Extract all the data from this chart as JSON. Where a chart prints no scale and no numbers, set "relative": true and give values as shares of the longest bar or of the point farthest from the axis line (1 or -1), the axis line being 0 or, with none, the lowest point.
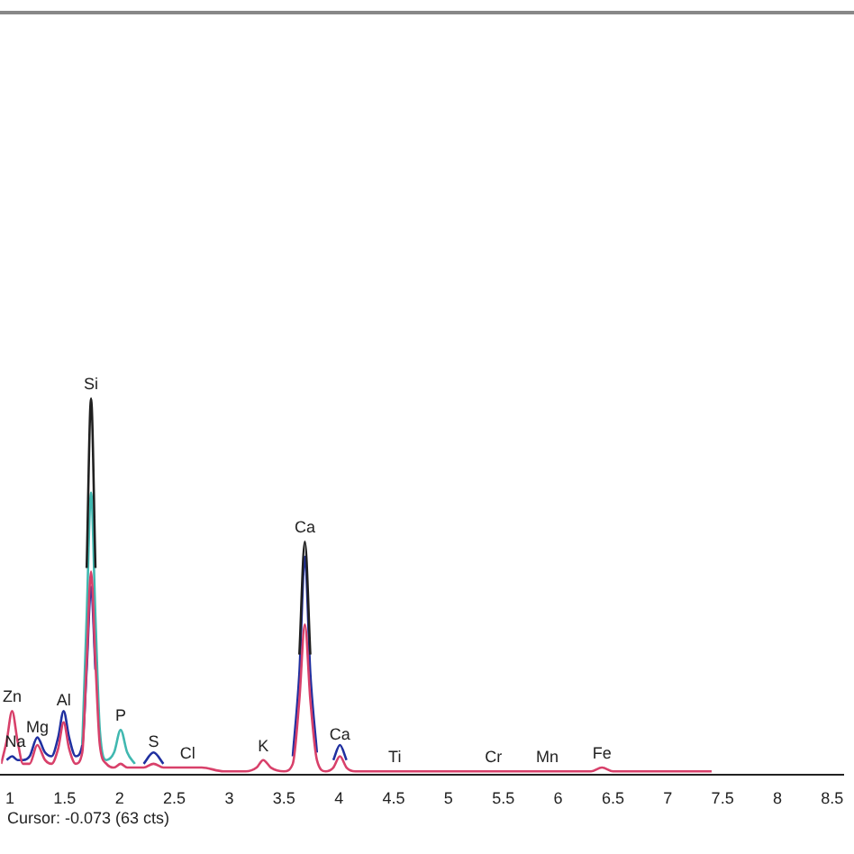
{
  "chart_data": {
    "type": "line",
    "relative": true,
    "grid": false,
    "legend": false,
    "marker": "none",
    "line_style": "solid",
    "xlim": [
      0.92,
      8.6
    ],
    "xticks": [
      1,
      1.5,
      2,
      2.5,
      3,
      3.5,
      4,
      4.5,
      5,
      5.5,
      6,
      6.5,
      7,
      7.5,
      8,
      8.5
    ],
    "x": [
      0.92,
      0.97,
      1.02,
      1.07,
      1.12,
      1.18,
      1.25,
      1.32,
      1.38,
      1.44,
      1.49,
      1.54,
      1.6,
      1.66,
      1.7,
      1.74,
      1.78,
      1.82,
      1.88,
      1.95,
      2.01,
      2.07,
      2.14,
      2.22,
      2.31,
      2.4,
      2.5,
      2.62,
      2.75,
      2.95,
      3.15,
      3.25,
      3.31,
      3.38,
      3.5,
      3.58,
      3.64,
      3.69,
      3.74,
      3.8,
      3.88,
      3.95,
      4.01,
      4.07,
      4.15,
      4.3,
      4.51,
      4.8,
      5.1,
      5.3,
      5.41,
      5.5,
      5.7,
      5.9,
      6.1,
      6.3,
      6.4,
      6.5,
      6.8,
      7.1,
      7.4
    ],
    "series": [
      {
        "color": "#d8406a",
        "values": [
          0.03,
          0.09,
          0.17,
          0.09,
          0.03,
          0.03,
          0.08,
          0.04,
          0.03,
          0.07,
          0.14,
          0.07,
          0.03,
          0.06,
          0.3,
          0.54,
          0.3,
          0.08,
          0.03,
          0.02,
          0.03,
          0.02,
          0.02,
          0.02,
          0.03,
          0.02,
          0.02,
          0.02,
          0.02,
          0.01,
          0.01,
          0.02,
          0.04,
          0.02,
          0.01,
          0.03,
          0.2,
          0.4,
          0.2,
          0.04,
          0.01,
          0.02,
          0.05,
          0.02,
          0.01,
          0.01,
          0.01,
          0.01,
          0.01,
          0.01,
          0.01,
          0.01,
          0.01,
          0.01,
          0.01,
          0.01,
          0.02,
          0.01,
          0.01,
          0.01,
          0.01
        ]
      },
      {
        "color": "#202020",
        "values": [
          null,
          null,
          null,
          null,
          null,
          null,
          null,
          null,
          null,
          null,
          null,
          null,
          null,
          null,
          0.55,
          1.0,
          0.55,
          null,
          null,
          null,
          null,
          null,
          null,
          null,
          null,
          null,
          null,
          null,
          null,
          null,
          null,
          null,
          null,
          null,
          null,
          null,
          0.32,
          0.62,
          0.32,
          null,
          null,
          null,
          null,
          null,
          null,
          null,
          null,
          null,
          null,
          null,
          null,
          null,
          null,
          null,
          null,
          null,
          null,
          null,
          null,
          null,
          null
        ]
      },
      {
        "color": "#40b8b0",
        "values": [
          null,
          null,
          null,
          null,
          null,
          null,
          null,
          null,
          null,
          null,
          null,
          null,
          null,
          0.08,
          0.42,
          0.75,
          0.42,
          0.12,
          0.04,
          0.06,
          0.12,
          0.06,
          0.03,
          null,
          null,
          null,
          null,
          null,
          null,
          null,
          null,
          null,
          null,
          null,
          null,
          null,
          null,
          null,
          null,
          null,
          null,
          null,
          null,
          null,
          null,
          null,
          null,
          null,
          null,
          null,
          null,
          null,
          null,
          null,
          null,
          null,
          null,
          null,
          null,
          null,
          null
        ]
      },
      {
        "color": "#2030a0",
        "values": [
          null,
          0.04,
          0.05,
          0.04,
          0.04,
          0.05,
          0.1,
          0.06,
          0.05,
          0.1,
          0.17,
          0.1,
          0.05,
          0.08,
          0.28,
          0.5,
          0.28,
          null,
          null,
          null,
          null,
          null,
          null,
          0.03,
          0.06,
          0.03,
          null,
          null,
          null,
          null,
          null,
          null,
          null,
          null,
          null,
          0.05,
          0.27,
          0.58,
          0.27,
          0.06,
          null,
          0.04,
          0.08,
          0.04,
          null,
          null,
          null,
          null,
          null,
          null,
          null,
          null,
          null,
          null,
          null,
          null,
          null,
          null,
          null,
          null,
          null
        ]
      }
    ],
    "annotations": [
      {
        "text": "Zn",
        "x": 1.02,
        "y": 0.17
      },
      {
        "text": "Na",
        "x": 1.05,
        "y": 0.05
      },
      {
        "text": "Mg",
        "x": 1.25,
        "y": 0.09
      },
      {
        "text": "Al",
        "x": 1.49,
        "y": 0.16
      },
      {
        "text": "Si",
        "x": 1.74,
        "y": 1.0
      },
      {
        "text": "P",
        "x": 2.01,
        "y": 0.12
      },
      {
        "text": "S",
        "x": 2.31,
        "y": 0.05
      },
      {
        "text": "Cl",
        "x": 2.62,
        "y": 0.02
      },
      {
        "text": "K",
        "x": 3.31,
        "y": 0.04
      },
      {
        "text": "Ca",
        "x": 3.69,
        "y": 0.62
      },
      {
        "text": "Ca",
        "x": 4.01,
        "y": 0.07
      },
      {
        "text": "Ti",
        "x": 4.51,
        "y": 0.01
      },
      {
        "text": "Cr",
        "x": 5.41,
        "y": 0.01
      },
      {
        "text": "Mn",
        "x": 5.9,
        "y": 0.01
      },
      {
        "text": "Fe",
        "x": 6.4,
        "y": 0.02
      },
      "Cursor: -0.073 (63 cts)"
    ]
  }
}
